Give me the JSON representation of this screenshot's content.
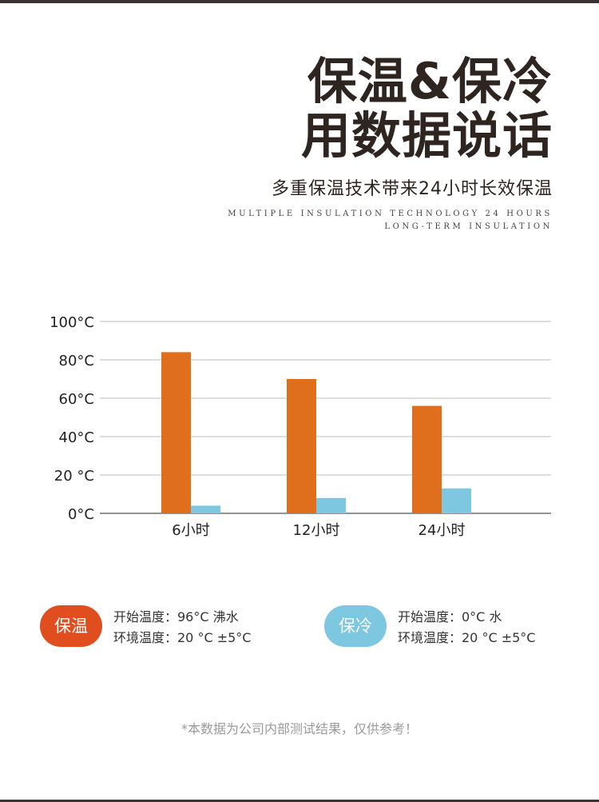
{
  "header": {
    "title_line1": "保温&保冷",
    "title_line2": "用数据说话",
    "subtitle": "多重保温技术带来24小时长效保温",
    "english_line1": "MULTIPLE INSULATION TECHNOLOGY 24 HOURS",
    "english_line2": "LONG-TERM INSULATION"
  },
  "chart_data": {
    "type": "bar",
    "categories": [
      "6小时",
      "12小时",
      "24小时"
    ],
    "series": [
      {
        "name": "保温",
        "values": [
          84,
          70,
          56
        ],
        "color": "#e06f1d"
      },
      {
        "name": "保冷",
        "values": [
          4,
          8,
          13
        ],
        "color": "#7ec7e0"
      }
    ],
    "y_ticks": [
      0,
      20,
      40,
      60,
      80,
      100
    ],
    "y_tick_labels": [
      "0°C",
      "20 °C",
      "40°C",
      "60°C",
      "80°C",
      "100°C"
    ],
    "ylim": [
      0,
      100
    ],
    "grid": true,
    "legend": "bottom"
  },
  "legend": {
    "hot": {
      "label": "保温",
      "color": "#e04e1f",
      "line1": "开始温度：96°C 沸水",
      "line2": "环境温度：20 °C ±5°C"
    },
    "cold": {
      "label": "保冷",
      "color": "#7ec7e0",
      "line1": "开始温度：0°C 水",
      "line2": "环境温度：20 °C ±5°C"
    }
  },
  "footnote": "*本数据为公司内部测试结果，仅供参考！"
}
